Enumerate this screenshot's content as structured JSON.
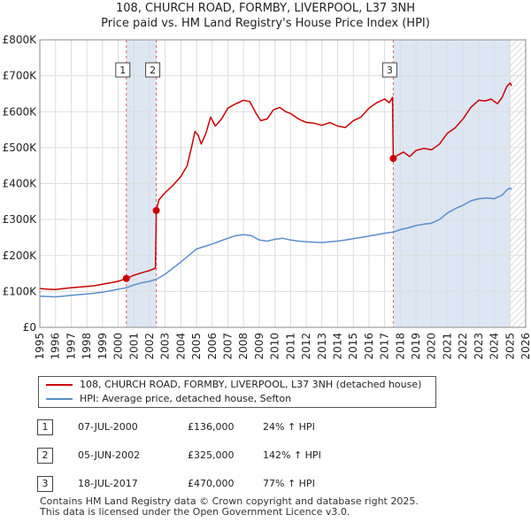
{
  "title": "108, CHURCH ROAD, FORMBY, LIVERPOOL, L37 3NH",
  "subtitle": "Price paid vs. HM Land Registry's House Price Index (HPI)",
  "colors": {
    "red": "#cc0000",
    "blue": "#5b8fcc",
    "shade": "#dde6f3",
    "hatch": "#bbbbbb",
    "grid": "#dddddd"
  },
  "legend": {
    "red_label": "108, CHURCH ROAD, FORMBY, LIVERPOOL, L37 3NH (detached house)",
    "blue_label": "HPI: Average price, detached house, Sefton"
  },
  "transactions": [
    {
      "num": "1",
      "date": "07-JUL-2000",
      "price": "£136,000",
      "hpi": "24% ↑ HPI"
    },
    {
      "num": "2",
      "date": "05-JUN-2002",
      "price": "£325,000",
      "hpi": "142% ↑ HPI"
    },
    {
      "num": "3",
      "date": "18-JUL-2017",
      "price": "£470,000",
      "hpi": "77% ↑ HPI"
    }
  ],
  "footer": {
    "line1": "Contains HM Land Registry data © Crown copyright and database right 2025.",
    "line2": "This data is licensed under the Open Government Licence v3.0."
  },
  "chart_data": {
    "type": "line",
    "title": "108, CHURCH ROAD, FORMBY, LIVERPOOL, L37 3NH",
    "subtitle": "Price paid vs. HM Land Registry's House Price Index (HPI)",
    "xlim": [
      1995,
      2026
    ],
    "ylim": [
      0,
      800000
    ],
    "x_ticks": [
      "1995",
      "1996",
      "1997",
      "1998",
      "1999",
      "2000",
      "2001",
      "2002",
      "2003",
      "2004",
      "2005",
      "2006",
      "2007",
      "2008",
      "2009",
      "2010",
      "2011",
      "2012",
      "2013",
      "2014",
      "2015",
      "2016",
      "2017",
      "2018",
      "2019",
      "2020",
      "2021",
      "2022",
      "2023",
      "2024",
      "2025",
      "2026"
    ],
    "y_ticks": [
      {
        "value": 0,
        "label": "£0"
      },
      {
        "value": 100000,
        "label": "£100K"
      },
      {
        "value": 200000,
        "label": "£200K"
      },
      {
        "value": 300000,
        "label": "£300K"
      },
      {
        "value": 400000,
        "label": "£400K"
      },
      {
        "value": 500000,
        "label": "£500K"
      },
      {
        "value": 600000,
        "label": "£600K"
      },
      {
        "value": 700000,
        "label": "£700K"
      },
      {
        "value": 800000,
        "label": "£800K"
      }
    ],
    "shaded_ranges": [
      [
        2000.52,
        2002.43
      ],
      [
        2017.55,
        2025.0
      ]
    ],
    "hatched_range": [
      2025.0,
      2026.0
    ],
    "sales": [
      {
        "label": "1",
        "x": 2000.52,
        "y": 136000
      },
      {
        "label": "2",
        "x": 2002.43,
        "y": 325000
      },
      {
        "label": "3",
        "x": 2017.55,
        "y": 470000
      }
    ],
    "series": [
      {
        "name": "108, CHURCH ROAD, FORMBY, LIVERPOOL, L37 3NH (detached house)",
        "color": "#cc0000",
        "points": [
          [
            1995.0,
            108000
          ],
          [
            1995.5,
            106000
          ],
          [
            1996.0,
            105000
          ],
          [
            1996.5,
            108000
          ],
          [
            1997.0,
            110000
          ],
          [
            1997.5,
            112000
          ],
          [
            1998.0,
            114000
          ],
          [
            1998.5,
            116000
          ],
          [
            1999.0,
            120000
          ],
          [
            1999.5,
            124000
          ],
          [
            2000.0,
            128000
          ],
          [
            2000.52,
            136000
          ],
          [
            2001.0,
            145000
          ],
          [
            2001.5,
            152000
          ],
          [
            2002.0,
            158000
          ],
          [
            2002.38,
            165000
          ],
          [
            2002.43,
            325000
          ],
          [
            2002.6,
            355000
          ],
          [
            2003.0,
            375000
          ],
          [
            2003.5,
            395000
          ],
          [
            2004.0,
            420000
          ],
          [
            2004.4,
            450000
          ],
          [
            2004.7,
            505000
          ],
          [
            2004.9,
            545000
          ],
          [
            2005.1,
            535000
          ],
          [
            2005.3,
            510000
          ],
          [
            2005.6,
            540000
          ],
          [
            2005.9,
            585000
          ],
          [
            2006.2,
            560000
          ],
          [
            2006.6,
            580000
          ],
          [
            2007.0,
            610000
          ],
          [
            2007.5,
            622000
          ],
          [
            2008.0,
            632000
          ],
          [
            2008.4,
            628000
          ],
          [
            2008.8,
            595000
          ],
          [
            2009.1,
            575000
          ],
          [
            2009.5,
            580000
          ],
          [
            2009.9,
            605000
          ],
          [
            2010.3,
            612000
          ],
          [
            2010.7,
            600000
          ],
          [
            2011.0,
            595000
          ],
          [
            2011.5,
            580000
          ],
          [
            2012.0,
            570000
          ],
          [
            2012.5,
            568000
          ],
          [
            2013.0,
            562000
          ],
          [
            2013.5,
            570000
          ],
          [
            2014.0,
            560000
          ],
          [
            2014.5,
            556000
          ],
          [
            2015.0,
            575000
          ],
          [
            2015.5,
            585000
          ],
          [
            2016.0,
            610000
          ],
          [
            2016.5,
            625000
          ],
          [
            2017.0,
            635000
          ],
          [
            2017.3,
            625000
          ],
          [
            2017.5,
            640000
          ],
          [
            2017.55,
            470000
          ],
          [
            2017.8,
            478000
          ],
          [
            2018.2,
            488000
          ],
          [
            2018.6,
            475000
          ],
          [
            2019.0,
            492000
          ],
          [
            2019.5,
            498000
          ],
          [
            2020.0,
            494000
          ],
          [
            2020.5,
            510000
          ],
          [
            2021.0,
            540000
          ],
          [
            2021.5,
            555000
          ],
          [
            2022.0,
            580000
          ],
          [
            2022.5,
            612000
          ],
          [
            2023.0,
            632000
          ],
          [
            2023.4,
            630000
          ],
          [
            2023.8,
            635000
          ],
          [
            2024.2,
            622000
          ],
          [
            2024.5,
            640000
          ],
          [
            2024.8,
            670000
          ],
          [
            2025.0,
            680000
          ],
          [
            2025.1,
            672000
          ]
        ]
      },
      {
        "name": "HPI: Average price, detached house, Sefton",
        "color": "#5b8fcc",
        "points": [
          [
            1995.0,
            87000
          ],
          [
            1995.5,
            86000
          ],
          [
            1996.0,
            85000
          ],
          [
            1996.5,
            87000
          ],
          [
            1997.0,
            89000
          ],
          [
            1997.5,
            91000
          ],
          [
            1998.0,
            93000
          ],
          [
            1998.5,
            95000
          ],
          [
            1999.0,
            98000
          ],
          [
            1999.5,
            102000
          ],
          [
            2000.0,
            106000
          ],
          [
            2000.52,
            110000
          ],
          [
            2001.0,
            118000
          ],
          [
            2001.5,
            124000
          ],
          [
            2002.0,
            128000
          ],
          [
            2002.43,
            134000
          ],
          [
            2003.0,
            148000
          ],
          [
            2003.5,
            165000
          ],
          [
            2004.0,
            182000
          ],
          [
            2004.5,
            200000
          ],
          [
            2005.0,
            218000
          ],
          [
            2005.5,
            225000
          ],
          [
            2006.0,
            232000
          ],
          [
            2006.5,
            240000
          ],
          [
            2007.0,
            248000
          ],
          [
            2007.5,
            255000
          ],
          [
            2008.0,
            258000
          ],
          [
            2008.5,
            255000
          ],
          [
            2009.0,
            243000
          ],
          [
            2009.5,
            240000
          ],
          [
            2010.0,
            245000
          ],
          [
            2010.5,
            248000
          ],
          [
            2011.0,
            243000
          ],
          [
            2011.5,
            240000
          ],
          [
            2012.0,
            238000
          ],
          [
            2012.5,
            237000
          ],
          [
            2013.0,
            236000
          ],
          [
            2013.5,
            238000
          ],
          [
            2014.0,
            240000
          ],
          [
            2014.5,
            243000
          ],
          [
            2015.0,
            247000
          ],
          [
            2015.5,
            250000
          ],
          [
            2016.0,
            254000
          ],
          [
            2016.5,
            258000
          ],
          [
            2017.0,
            262000
          ],
          [
            2017.55,
            265000
          ],
          [
            2018.0,
            272000
          ],
          [
            2018.5,
            277000
          ],
          [
            2019.0,
            283000
          ],
          [
            2019.5,
            287000
          ],
          [
            2020.0,
            290000
          ],
          [
            2020.5,
            300000
          ],
          [
            2021.0,
            318000
          ],
          [
            2021.5,
            330000
          ],
          [
            2022.0,
            340000
          ],
          [
            2022.5,
            352000
          ],
          [
            2023.0,
            358000
          ],
          [
            2023.5,
            360000
          ],
          [
            2024.0,
            358000
          ],
          [
            2024.5,
            368000
          ],
          [
            2024.8,
            382000
          ],
          [
            2025.0,
            388000
          ],
          [
            2025.1,
            384000
          ]
        ]
      }
    ]
  }
}
